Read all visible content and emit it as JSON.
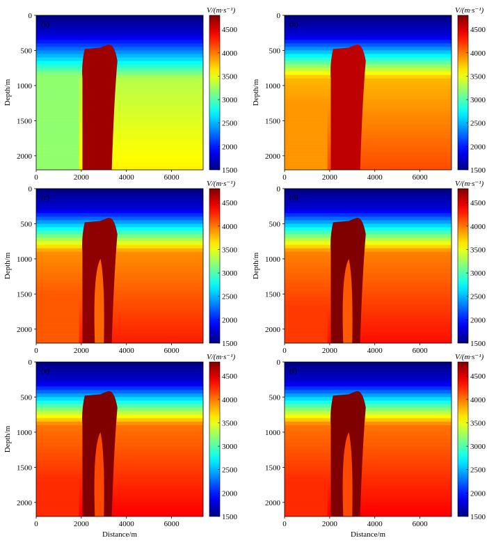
{
  "chart_data": [
    {
      "type": "heatmap",
      "panel_label": "(a)",
      "xlabel": "",
      "ylabel": "Depth/m",
      "xticks": [
        0,
        2000,
        4000,
        6000
      ],
      "yticks": [
        0,
        500,
        1000,
        1500,
        2000
      ],
      "xlim": [
        0,
        7400
      ],
      "ylim": [
        2200,
        0
      ],
      "colorbar": {
        "label": "V/(m·s⁻¹)",
        "ticks": [
          1500,
          2000,
          2500,
          3000,
          3500,
          4000,
          4500
        ],
        "range": [
          1500,
          4800
        ],
        "colormap": "jet"
      },
      "salt_body_velocity": 4700,
      "background_velocity": 3600,
      "left_block_velocity": 3200,
      "salt_outline": [
        [
          2000,
          480
        ],
        [
          2250,
          470
        ],
        [
          2600,
          460
        ],
        [
          3000,
          450
        ],
        [
          3300,
          420
        ],
        [
          3500,
          480
        ],
        [
          3700,
          700
        ],
        [
          3500,
          2200
        ],
        [
          2000,
          2200
        ]
      ]
    },
    {
      "type": "heatmap",
      "panel_label": "(b)",
      "xlabel": "",
      "ylabel": "Depth/m",
      "xticks": [
        0,
        2000,
        4000,
        6000
      ],
      "yticks": [
        0,
        500,
        1000,
        1500,
        2000
      ],
      "xlim": [
        0,
        7400
      ],
      "ylim": [
        2200,
        0
      ],
      "colorbar": {
        "label": "V/(m·s⁻¹)",
        "ticks": [
          1500,
          2000,
          2500,
          3000,
          3500,
          4000,
          4500
        ],
        "range": [
          1500,
          4800
        ],
        "colormap": "jet"
      },
      "salt_body_velocity": 4600,
      "background_velocity": 4150,
      "left_block_velocity": 3900
    },
    {
      "type": "heatmap",
      "panel_label": "(c)",
      "xlabel": "",
      "ylabel": "Depth/m",
      "xticks": [
        0,
        2000,
        4000,
        6000
      ],
      "yticks": [
        0,
        500,
        1000,
        1500,
        2000
      ],
      "xlim": [
        0,
        7400
      ],
      "ylim": [
        2200,
        0
      ],
      "colorbar": {
        "label": "V/(m·s⁻¹)",
        "ticks": [
          1500,
          2000,
          2500,
          3000,
          3500,
          4000,
          4500
        ],
        "range": [
          1500,
          4800
        ],
        "colormap": "jet"
      },
      "salt_body_velocity": 4750,
      "background_velocity": 4300,
      "left_block_velocity": 4100
    },
    {
      "type": "heatmap",
      "panel_label": "(d)",
      "xlabel": "",
      "ylabel": "Depth/m",
      "xticks": [
        0,
        2000,
        4000,
        6000
      ],
      "yticks": [
        0,
        500,
        1000,
        1500,
        2000
      ],
      "xlim": [
        0,
        7400
      ],
      "ylim": [
        2200,
        0
      ],
      "colorbar": {
        "label": "V/(m·s⁻¹)",
        "ticks": [
          1500,
          2000,
          2500,
          3000,
          3500,
          4000,
          4500
        ],
        "range": [
          1500,
          4800
        ],
        "colormap": "jet"
      },
      "salt_body_velocity": 4800,
      "background_velocity": 4350,
      "left_block_velocity": 4200
    },
    {
      "type": "heatmap",
      "panel_label": "(e)",
      "xlabel": "Distance/m",
      "ylabel": "Depth/m",
      "xticks": [
        0,
        2000,
        4000,
        6000
      ],
      "yticks": [
        0,
        500,
        1000,
        1500,
        2000
      ],
      "xlim": [
        0,
        7400
      ],
      "ylim": [
        2200,
        0
      ],
      "colorbar": {
        "label": "V/(m·s⁻¹)",
        "ticks": [
          1500,
          2000,
          2500,
          3000,
          3500,
          4000,
          4500
        ],
        "range": [
          1500,
          4800
        ],
        "colormap": "jet"
      },
      "salt_body_velocity": 4800,
      "background_velocity": 4400,
      "left_block_velocity": 4250
    },
    {
      "type": "heatmap",
      "panel_label": "(f)",
      "xlabel": "Distance/m",
      "ylabel": "",
      "xticks": [
        0,
        2000,
        4000,
        6000
      ],
      "yticks": [
        0,
        500,
        1000,
        1500,
        2000
      ],
      "xlim": [
        0,
        7400
      ],
      "ylim": [
        2200,
        0
      ],
      "colorbar": {
        "label": "V/(m·s⁻¹)",
        "ticks": [
          1500,
          2000,
          2500,
          3000,
          3500,
          4000,
          4500
        ],
        "range": [
          1500,
          4800
        ],
        "colormap": "jet"
      },
      "salt_body_velocity": 4800,
      "background_velocity": 4400,
      "left_block_velocity": 4250
    }
  ]
}
